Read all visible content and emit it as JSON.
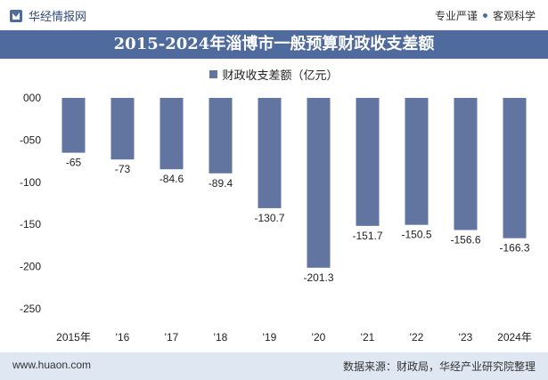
{
  "header": {
    "brand": "华经情报网",
    "tagline_left": "专业严谨",
    "tagline_right": "客观科学"
  },
  "title": "2015-2024年淄博市一般预算财政收支差额",
  "legend": "财政收支差额（亿元）",
  "footer": {
    "website": "www.huaon.com",
    "source": "数据来源：财政局，华经产业研究院整理"
  },
  "colors": {
    "bar": "#6175a0",
    "title_bg": "#4f6a9c",
    "footer_bg": "#dfe7f2"
  },
  "chart_data": {
    "type": "bar",
    "title": "2015-2024年淄博市一般预算财政收支差额",
    "categories": [
      "2015年",
      "'16",
      "'17",
      "'18",
      "'19",
      "'20",
      "'21",
      "'22",
      "'23",
      "2024年"
    ],
    "series": [
      {
        "name": "财政收支差额（亿元）",
        "values": [
          -65,
          -73,
          -84.6,
          -89.4,
          -130.7,
          -201.3,
          -151.7,
          -150.5,
          -156.6,
          -166.3
        ],
        "labels": [
          "-65",
          "-73",
          "-84.6",
          "-89.4",
          "-130.7",
          "-201.3",
          "-151.7",
          "-150.5",
          "-156.6",
          "-166.3"
        ]
      }
    ],
    "yticks": [
      "000",
      "-050",
      "-100",
      "-150",
      "-200",
      "-250"
    ],
    "ylim": [
      -250,
      0
    ],
    "grid": false,
    "legend_position": "top-center"
  }
}
